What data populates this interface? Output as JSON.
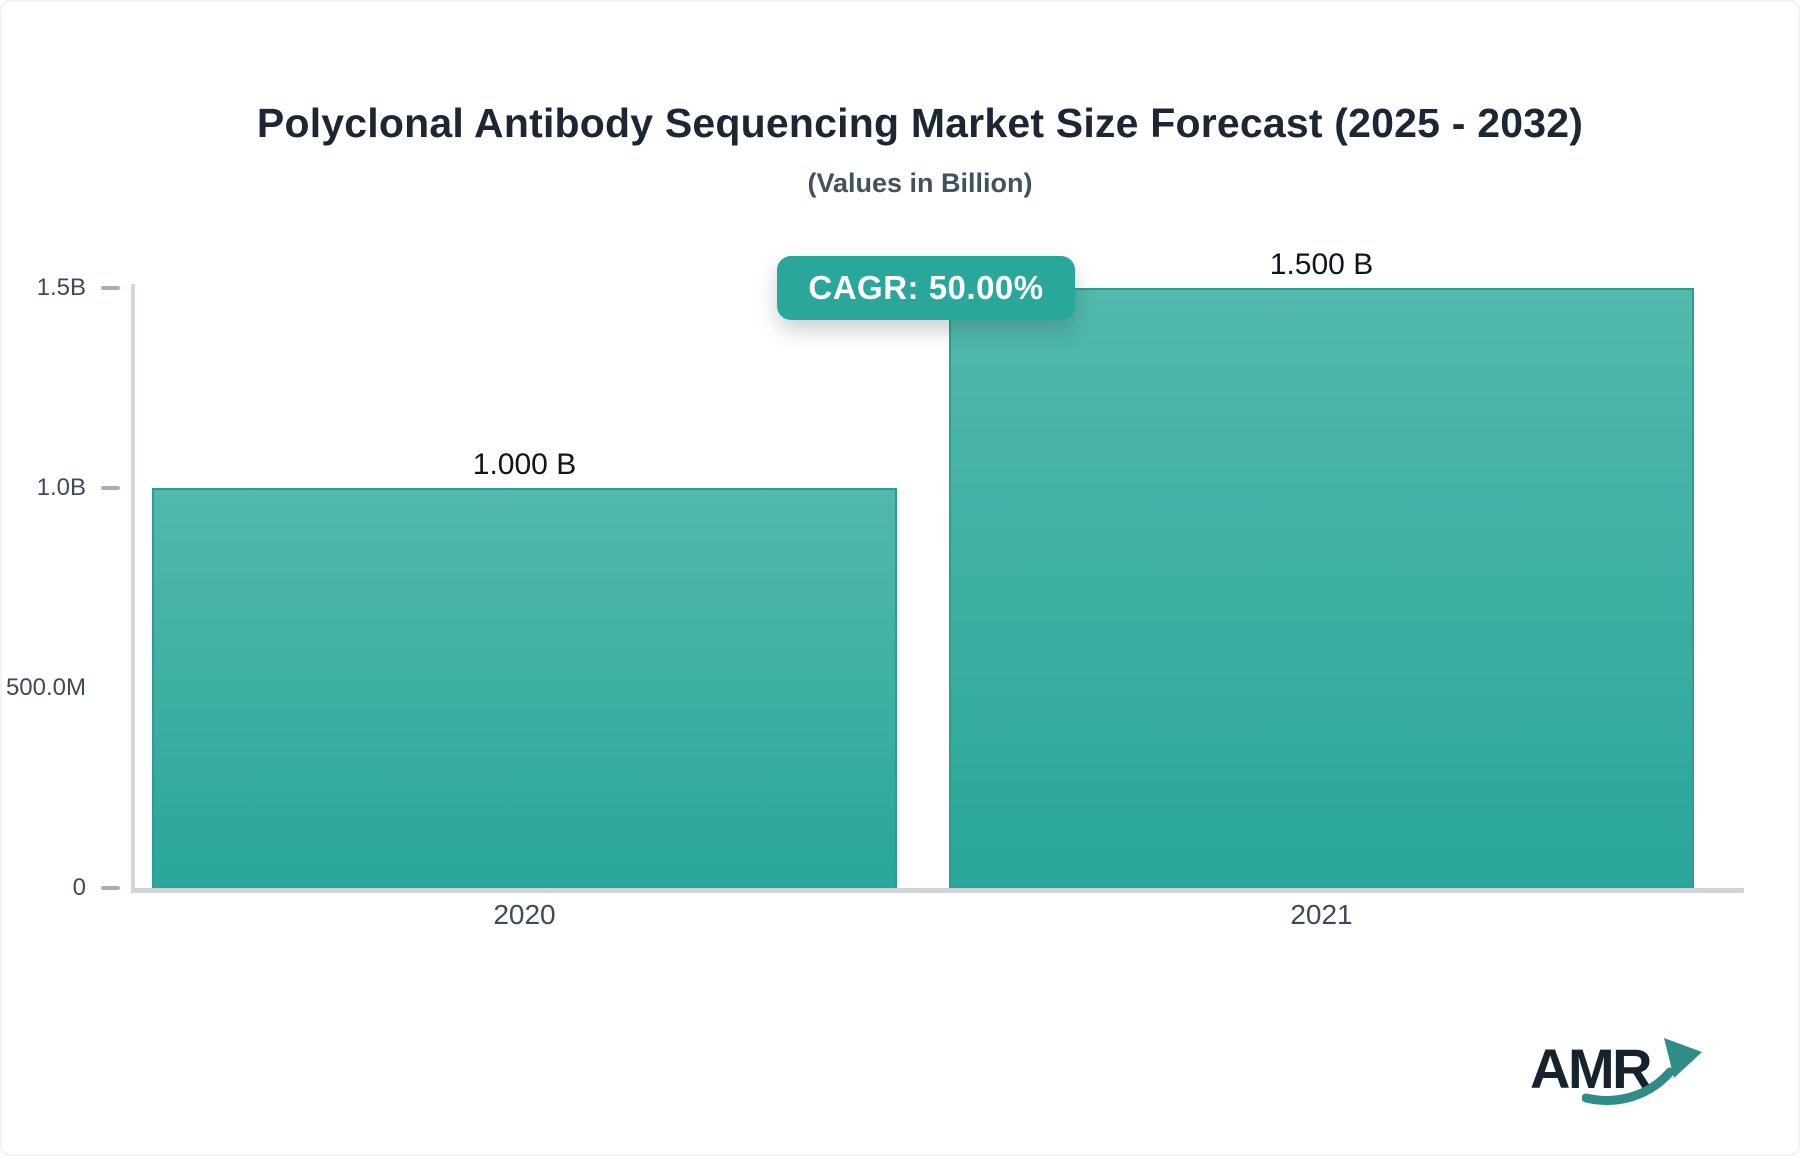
{
  "header": {
    "title": "Polyclonal Antibody Sequencing Market Size Forecast (2025 - 2032)",
    "subtitle": "(Values in Billion)"
  },
  "badge": {
    "label": "CAGR: 50.00%"
  },
  "logo": {
    "text": "AMR"
  },
  "chart_data": {
    "type": "bar",
    "title": "Polyclonal Antibody Sequencing Market Size Forecast (2025 - 2032)",
    "subtitle": "(Values in Billion)",
    "categories": [
      "2020",
      "2021"
    ],
    "values": [
      1.0,
      1.5
    ],
    "value_labels": [
      "1.000 B",
      "1.500 B"
    ],
    "cagr_label": "CAGR: 50.00%",
    "xlabel": "",
    "ylabel": "",
    "ylim": [
      0,
      1.5
    ],
    "grid": false,
    "legend_position": "none",
    "yticks": [
      {
        "value": 0,
        "label": "0",
        "dash": true
      },
      {
        "value": 0.5,
        "label": "500.0M",
        "dash": false
      },
      {
        "value": 1.0,
        "label": "1.0B",
        "dash": true
      },
      {
        "value": 1.5,
        "label": "1.5B",
        "dash": true
      }
    ],
    "colors": {
      "bar_gradient_top": "#52b9ac",
      "bar_gradient_bottom": "#29a69a",
      "bar_border": "#2d9c91",
      "badge_bg": "#29a79b",
      "axis_line": "#d3d6dc",
      "tick_dash": "#a7adb7",
      "tick_label": "#3d4a5c",
      "value_label": "#0d161f",
      "title": "#1d2633",
      "subtitle": "#42505f",
      "logo_text": "#16222c",
      "logo_arrow": "#2e8d87"
    }
  }
}
